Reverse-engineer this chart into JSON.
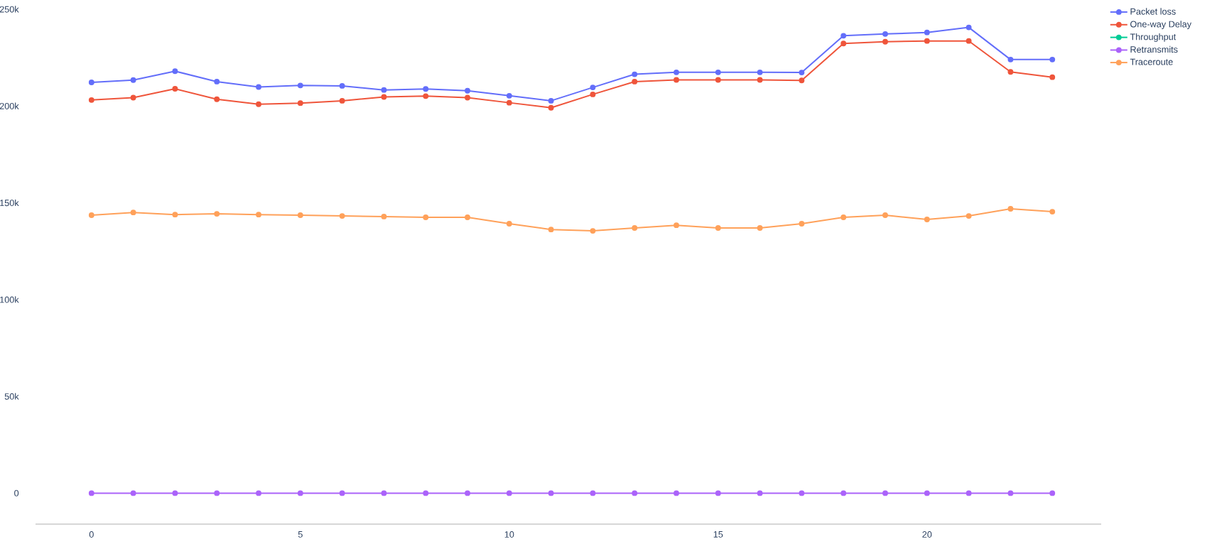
{
  "chart_data": {
    "type": "line",
    "x": [
      0,
      1,
      2,
      3,
      4,
      5,
      6,
      7,
      8,
      9,
      10,
      11,
      12,
      13,
      14,
      15,
      16,
      17,
      18,
      19,
      20,
      21,
      22,
      23
    ],
    "series": [
      {
        "name": "Packet loss",
        "color": "#636efa",
        "values": [
          212200,
          213400,
          218000,
          212600,
          209800,
          210600,
          210400,
          208300,
          208800,
          207900,
          205300,
          202700,
          209600,
          216400,
          217400,
          217400,
          217400,
          217300,
          236300,
          237200,
          238000,
          240600,
          224000,
          224000
        ]
      },
      {
        "name": "One-way Delay",
        "color": "#ef553b",
        "values": [
          203100,
          204300,
          208900,
          203500,
          200900,
          201500,
          202700,
          204700,
          205100,
          204300,
          201700,
          199100,
          206000,
          212600,
          213500,
          213500,
          213500,
          213200,
          232300,
          233200,
          233600,
          233600,
          217600,
          214900
        ]
      },
      {
        "name": "Throughput",
        "color": "#00cc96",
        "values": [
          null,
          null,
          null,
          null,
          null,
          null,
          null,
          null,
          null,
          null,
          null,
          null,
          null,
          null,
          null,
          null,
          null,
          null,
          null,
          null,
          null,
          null,
          null,
          null
        ]
      },
      {
        "name": "Retransmits",
        "color": "#ab63fa",
        "values": [
          0,
          0,
          0,
          0,
          0,
          0,
          0,
          0,
          0,
          0,
          0,
          0,
          0,
          0,
          0,
          0,
          0,
          0,
          0,
          0,
          0,
          0,
          0,
          0
        ]
      },
      {
        "name": "Traceroute",
        "color": "#ffa15a",
        "values": [
          143600,
          145000,
          143900,
          144300,
          143900,
          143600,
          143200,
          142900,
          142500,
          142500,
          139200,
          136200,
          135500,
          137000,
          138400,
          137000,
          137000,
          139200,
          142500,
          143600,
          141400,
          143200,
          146900,
          145400
        ]
      }
    ],
    "xlim": [
      -1.34,
      24.17
    ],
    "ylim": [
      -16000,
      250000
    ],
    "xticks": [
      0,
      5,
      10,
      15,
      20
    ],
    "yticks": [
      0,
      {
        "value": 50000,
        "label": "50k"
      },
      {
        "value": 100000,
        "label": "100k"
      },
      {
        "value": 150000,
        "label": "150k"
      },
      {
        "value": 200000,
        "label": "200k"
      },
      {
        "value": 250000,
        "label": "250k"
      }
    ],
    "legend": "top right",
    "marker": "circle",
    "line_style": "solid"
  }
}
